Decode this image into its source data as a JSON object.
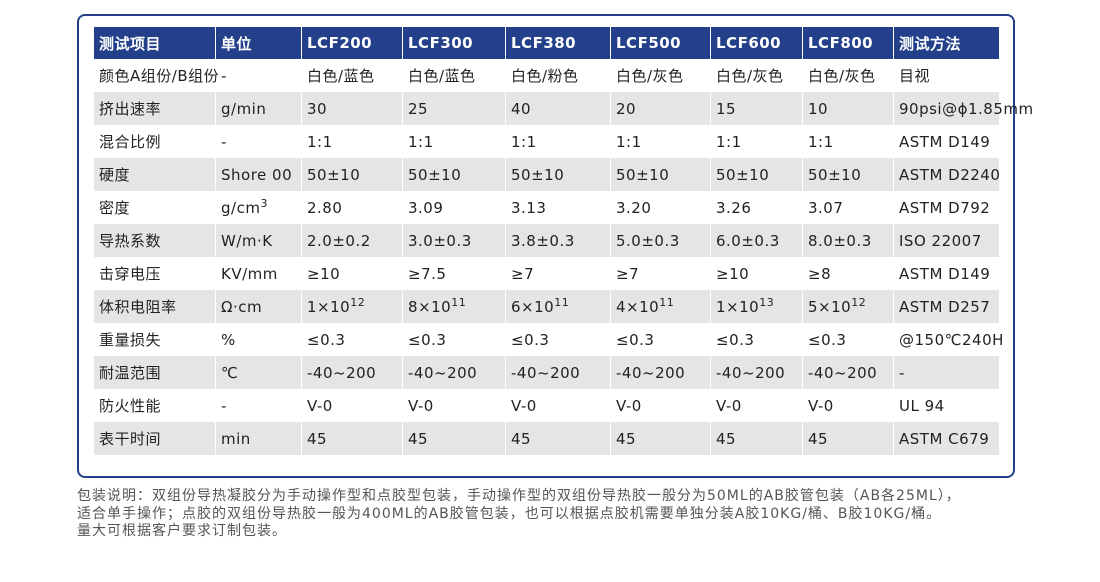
{
  "table": {
    "header": [
      "测试项目",
      "单位",
      "LCF200",
      "LCF300",
      "LCF380",
      "LCF500",
      "LCF600",
      "LCF800",
      "测试方法"
    ],
    "rows": [
      [
        "颜色A组份/B组份",
        "-",
        "白色/蓝色",
        "白色/蓝色",
        "白色/粉色",
        "白色/灰色",
        "白色/灰色",
        "白色/灰色",
        "目视"
      ],
      [
        "挤出速率",
        "g/min",
        "30",
        "25",
        "40",
        "20",
        "15",
        "10",
        "90psi@ϕ1.85mm"
      ],
      [
        "混合比例",
        "-",
        "1:1",
        "1:1",
        "1:1",
        "1:1",
        "1:1",
        "1:1",
        "ASTM D149"
      ],
      [
        "硬度",
        "Shore 00",
        "50±10",
        "50±10",
        "50±10",
        "50±10",
        "50±10",
        "50±10",
        "ASTM D2240"
      ],
      [
        "密度",
        {
          "text": "g/cm",
          "sup": "3"
        },
        "2.80",
        "3.09",
        "3.13",
        "3.20",
        "3.26",
        "3.07",
        "ASTM D792"
      ],
      [
        "导热系数",
        "W/m·K",
        "2.0±0.2",
        "3.0±0.3",
        "3.8±0.3",
        "5.0±0.3",
        "6.0±0.3",
        "8.0±0.3",
        "ISO 22007"
      ],
      [
        "击穿电压",
        "KV/mm",
        "≥10",
        "≥7.5",
        "≥7",
        "≥7",
        "≥10",
        "≥8",
        "ASTM D149"
      ],
      [
        "体积电阻率",
        "Ω·cm",
        {
          "text": "1×10",
          "sup": "12"
        },
        {
          "text": "8×10",
          "sup": "11"
        },
        {
          "text": "6×10",
          "sup": "11"
        },
        {
          "text": "4×10",
          "sup": "11"
        },
        {
          "text": "1×10",
          "sup": "13"
        },
        {
          "text": "5×10",
          "sup": "12"
        },
        "ASTM D257"
      ],
      [
        "重量损失",
        "%",
        "≤0.3",
        "≤0.3",
        "≤0.3",
        "≤0.3",
        "≤0.3",
        "≤0.3",
        "@150℃240H"
      ],
      [
        "耐温范围",
        "℃",
        "-40~200",
        "-40~200",
        "-40~200",
        "-40~200",
        "-40~200",
        "-40~200",
        "-"
      ],
      [
        "防火性能",
        "-",
        "V-0",
        "V-0",
        "V-0",
        "V-0",
        "V-0",
        "V-0",
        "UL 94"
      ],
      [
        "表干时间",
        "min",
        "45",
        "45",
        "45",
        "45",
        "45",
        "45",
        "ASTM C679"
      ]
    ]
  },
  "note": [
    "包装说明：双组份导热凝胶分为手动操作型和点胶型包装，手动操作型的双组份导热胶一般分为50ML的AB胶管包装（AB各25ML），",
    "适合单手操作；点胶的双组份导热胶一般为400ML的AB胶管包装，也可以根据点胶机需要单独分装A胶10KG/桶、B胶10KG/桶。",
    "量大可根据客户要求订制包装。"
  ]
}
